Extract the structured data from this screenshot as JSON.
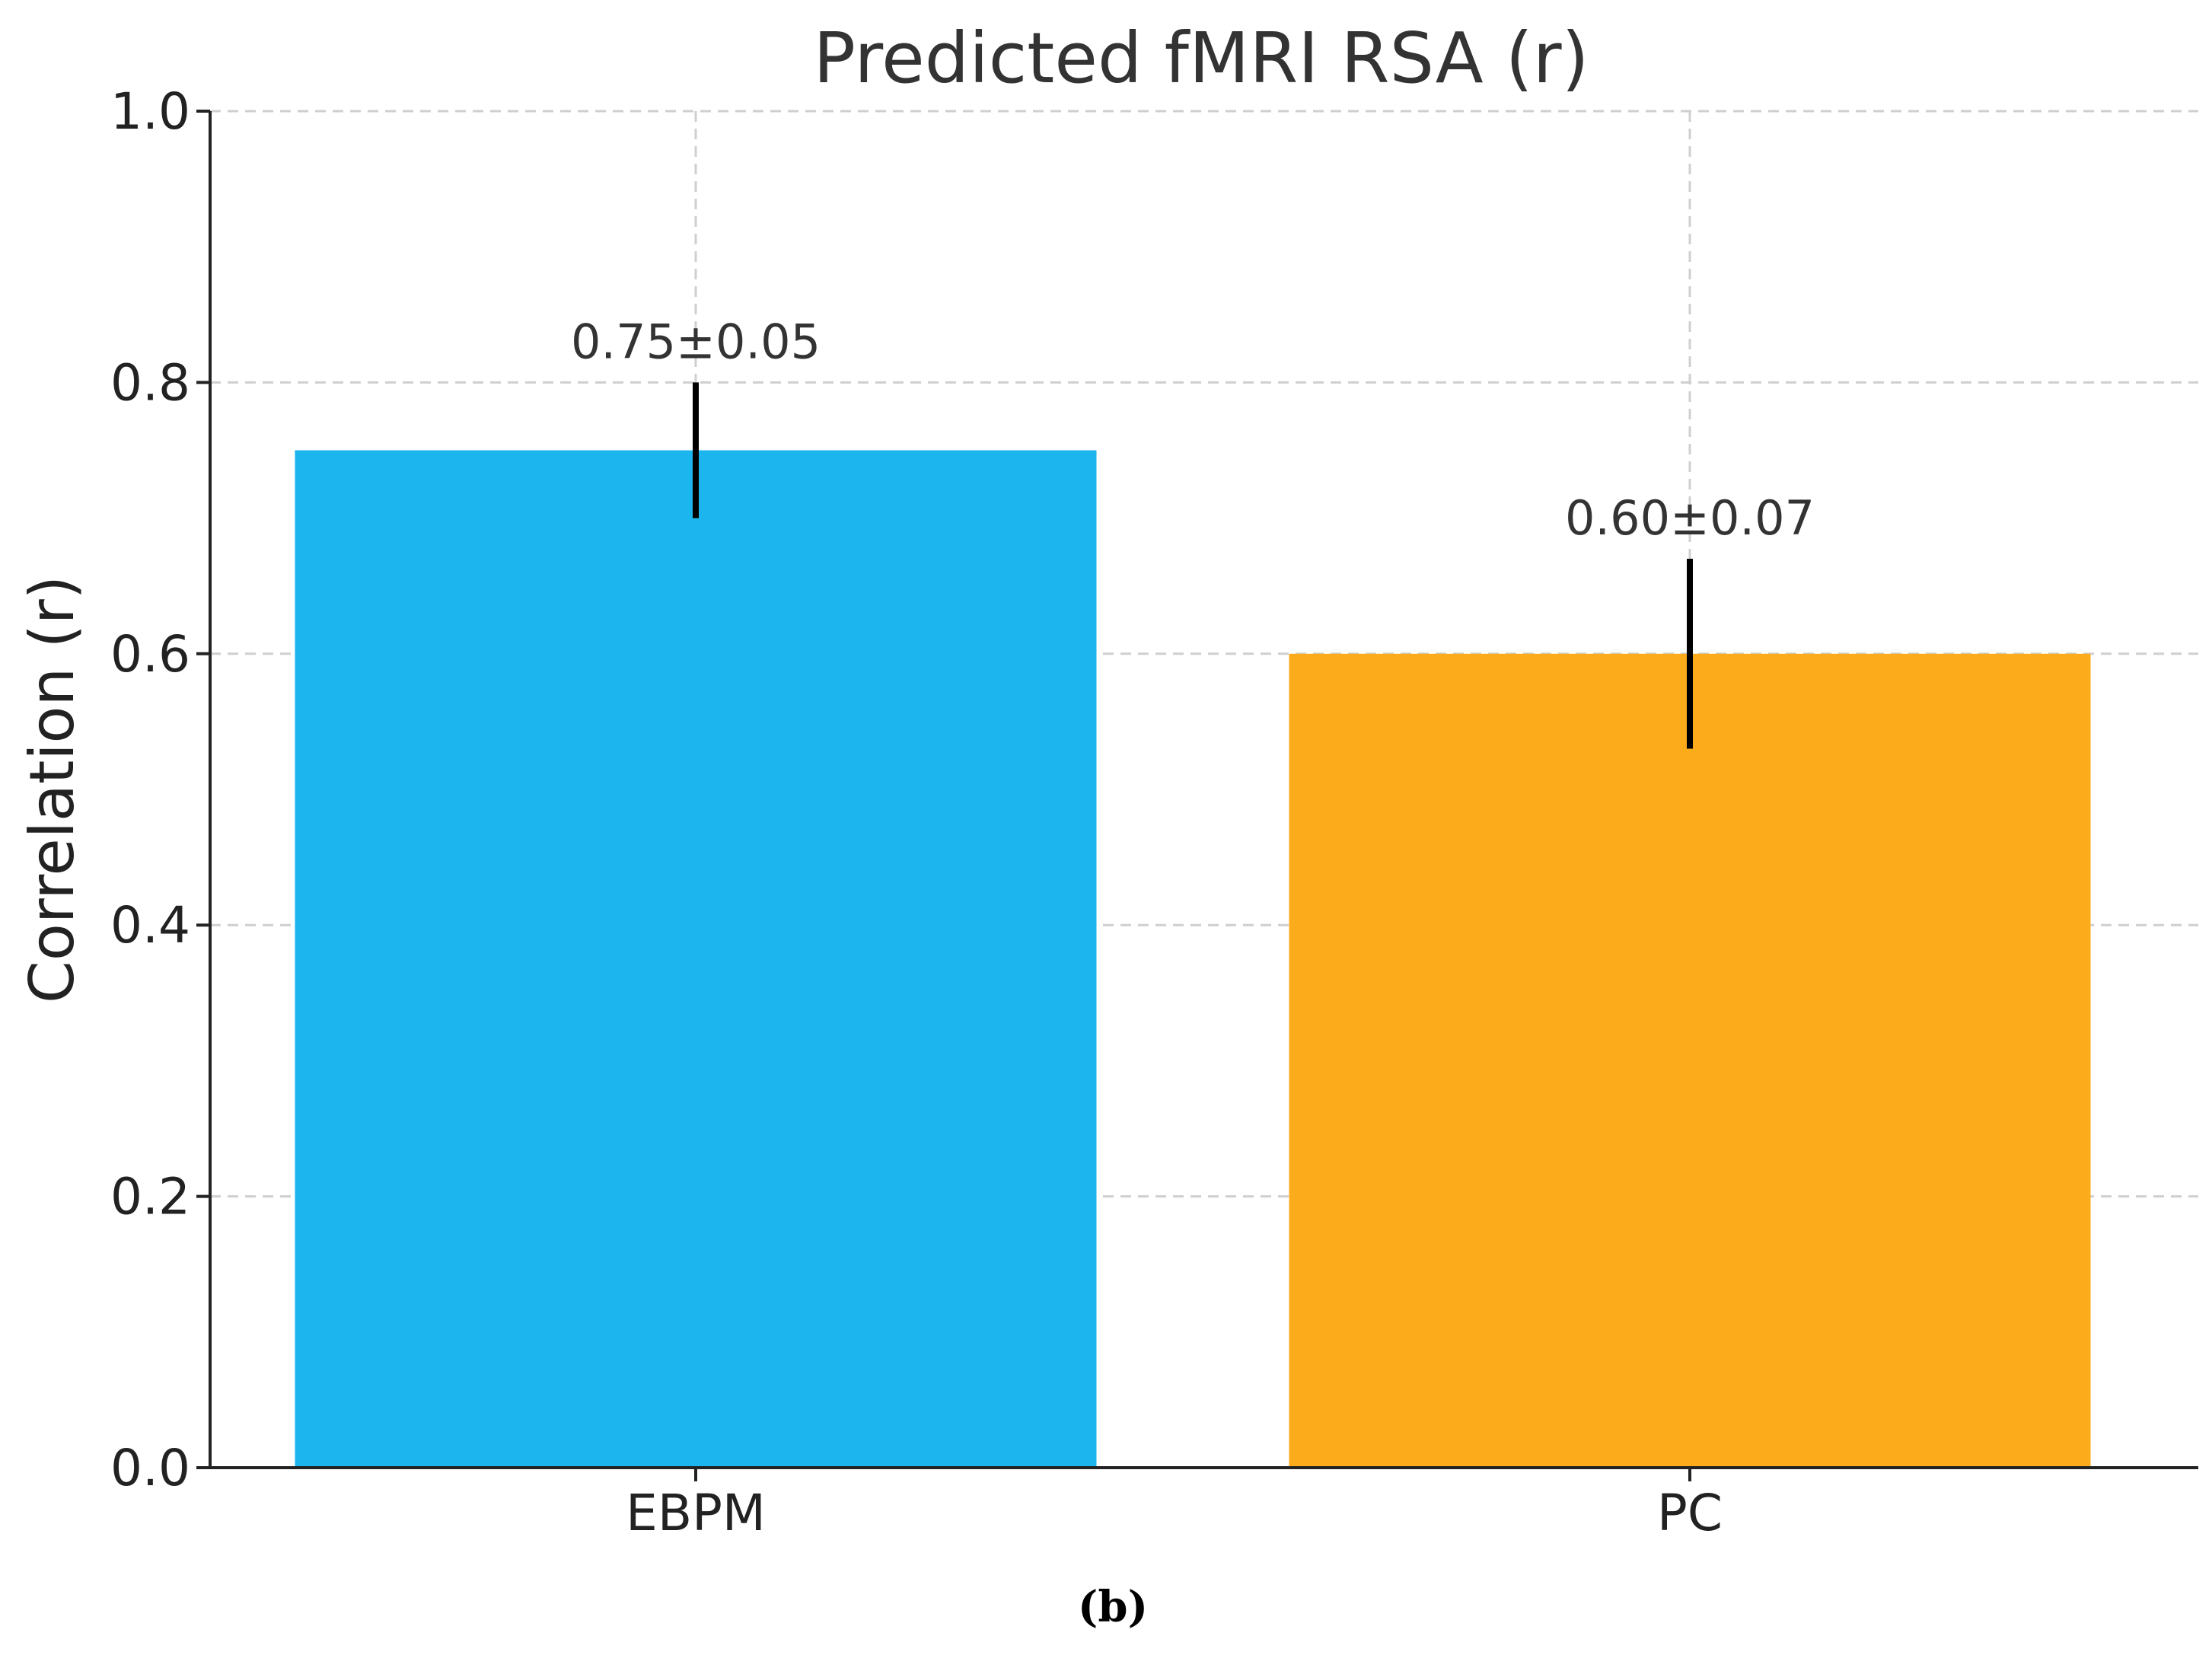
{
  "chart_data": {
    "type": "bar",
    "title": "Predicted fMRI RSA (r)",
    "xlabel": "",
    "ylabel": "Correlation (r)",
    "categories": [
      "EBPM",
      "PC"
    ],
    "values": [
      0.75,
      0.6
    ],
    "errors": [
      0.05,
      0.07
    ],
    "data_labels": [
      "0.75±0.05",
      "0.60±0.07"
    ],
    "colors": [
      "#1cb5ee",
      "#fcab1a"
    ],
    "ylim": [
      0,
      1.0
    ],
    "yticks": [
      0.0,
      0.2,
      0.4,
      0.6,
      0.8,
      1.0
    ],
    "ytick_labels": [
      "0.0",
      "0.2",
      "0.4",
      "0.6",
      "0.8",
      "1.0"
    ],
    "grid": true
  },
  "caption": "(b)"
}
